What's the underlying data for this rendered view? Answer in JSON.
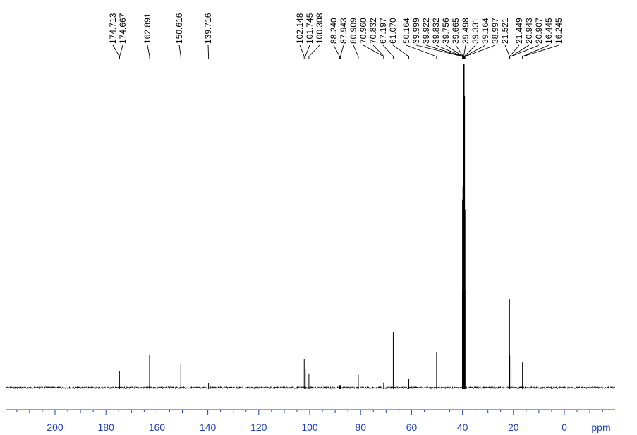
{
  "chart_data": {
    "type": "line",
    "x_unit_label": "ppm",
    "x_axis_reversed": true,
    "xlim": [
      220,
      -18
    ],
    "ylim": [
      0,
      1
    ],
    "x_ticks": [
      {
        "value": 200,
        "label": "200"
      },
      {
        "value": 180,
        "label": "180"
      },
      {
        "value": 160,
        "label": "160"
      },
      {
        "value": 140,
        "label": "140"
      },
      {
        "value": 120,
        "label": "120"
      },
      {
        "value": 100,
        "label": "100"
      },
      {
        "value": 80,
        "label": "80"
      },
      {
        "value": 60,
        "label": "60"
      },
      {
        "value": 40,
        "label": "40"
      },
      {
        "value": 20,
        "label": "20"
      },
      {
        "value": 0,
        "label": "0"
      }
    ],
    "peak_labels": [
      {
        "label": "174.713",
        "ppm": 174.713
      },
      {
        "label": "174.667",
        "ppm": 174.667
      },
      {
        "label": "162.891",
        "ppm": 162.891
      },
      {
        "label": "150.616",
        "ppm": 150.616
      },
      {
        "label": "139.716",
        "ppm": 139.716
      },
      {
        "label": "102.148",
        "ppm": 102.148
      },
      {
        "label": "101.745",
        "ppm": 101.745
      },
      {
        "label": "100.308",
        "ppm": 100.308
      },
      {
        "label": "88.240",
        "ppm": 88.24
      },
      {
        "label": "87.943",
        "ppm": 87.943
      },
      {
        "label": "80.909",
        "ppm": 80.909
      },
      {
        "label": "70.960",
        "ppm": 70.96
      },
      {
        "label": "70.832",
        "ppm": 70.832
      },
      {
        "label": "67.197",
        "ppm": 67.197
      },
      {
        "label": "61.070",
        "ppm": 61.07
      },
      {
        "label": "50.164",
        "ppm": 50.164
      },
      {
        "label": "39.999",
        "ppm": 39.999
      },
      {
        "label": "39.922",
        "ppm": 39.922
      },
      {
        "label": "39.832",
        "ppm": 39.832
      },
      {
        "label": "39.756",
        "ppm": 39.756
      },
      {
        "label": "39.665",
        "ppm": 39.665
      },
      {
        "label": "39.498",
        "ppm": 39.498
      },
      {
        "label": "39.331",
        "ppm": 39.331
      },
      {
        "label": "39.164",
        "ppm": 39.164
      },
      {
        "label": "38.997",
        "ppm": 38.997
      },
      {
        "label": "21.521",
        "ppm": 21.521
      },
      {
        "label": "21.449",
        "ppm": 21.449
      },
      {
        "label": "20.943",
        "ppm": 20.943
      },
      {
        "label": "20.907",
        "ppm": 20.907
      },
      {
        "label": "16.445",
        "ppm": 16.445
      },
      {
        "label": "16.245",
        "ppm": 16.245
      }
    ],
    "peaks": [
      {
        "ppm": 174.69,
        "intensity": 0.05
      },
      {
        "ppm": 162.891,
        "intensity": 0.1
      },
      {
        "ppm": 150.616,
        "intensity": 0.074
      },
      {
        "ppm": 139.716,
        "intensity": 0.014
      },
      {
        "ppm": 102.148,
        "intensity": 0.088
      },
      {
        "ppm": 101.745,
        "intensity": 0.057
      },
      {
        "ppm": 100.308,
        "intensity": 0.044
      },
      {
        "ppm": 88.24,
        "intensity": 0.008
      },
      {
        "ppm": 87.943,
        "intensity": 0.008
      },
      {
        "ppm": 80.909,
        "intensity": 0.04
      },
      {
        "ppm": 70.96,
        "intensity": 0.016
      },
      {
        "ppm": 70.832,
        "intensity": 0.014
      },
      {
        "ppm": 67.197,
        "intensity": 0.172
      },
      {
        "ppm": 61.07,
        "intensity": 0.028
      },
      {
        "ppm": 50.164,
        "intensity": 0.11
      },
      {
        "ppm": 39.999,
        "intensity": 0.3
      },
      {
        "ppm": 39.832,
        "intensity": 0.58
      },
      {
        "ppm": 39.665,
        "intensity": 0.62
      },
      {
        "ppm": 39.498,
        "intensity": 1.0
      },
      {
        "ppm": 39.331,
        "intensity": 0.9
      },
      {
        "ppm": 39.164,
        "intensity": 0.55
      },
      {
        "ppm": 38.997,
        "intensity": 0.3
      },
      {
        "ppm": 21.521,
        "intensity": 0.272
      },
      {
        "ppm": 21.449,
        "intensity": 0.1
      },
      {
        "ppm": 20.943,
        "intensity": 0.098
      },
      {
        "ppm": 20.907,
        "intensity": 0.08
      },
      {
        "ppm": 16.445,
        "intensity": 0.078
      },
      {
        "ppm": 16.245,
        "intensity": 0.066
      }
    ],
    "colors": {
      "spectrum": "#000000",
      "axis": "#1f3fbf",
      "labels": "#000000"
    }
  }
}
